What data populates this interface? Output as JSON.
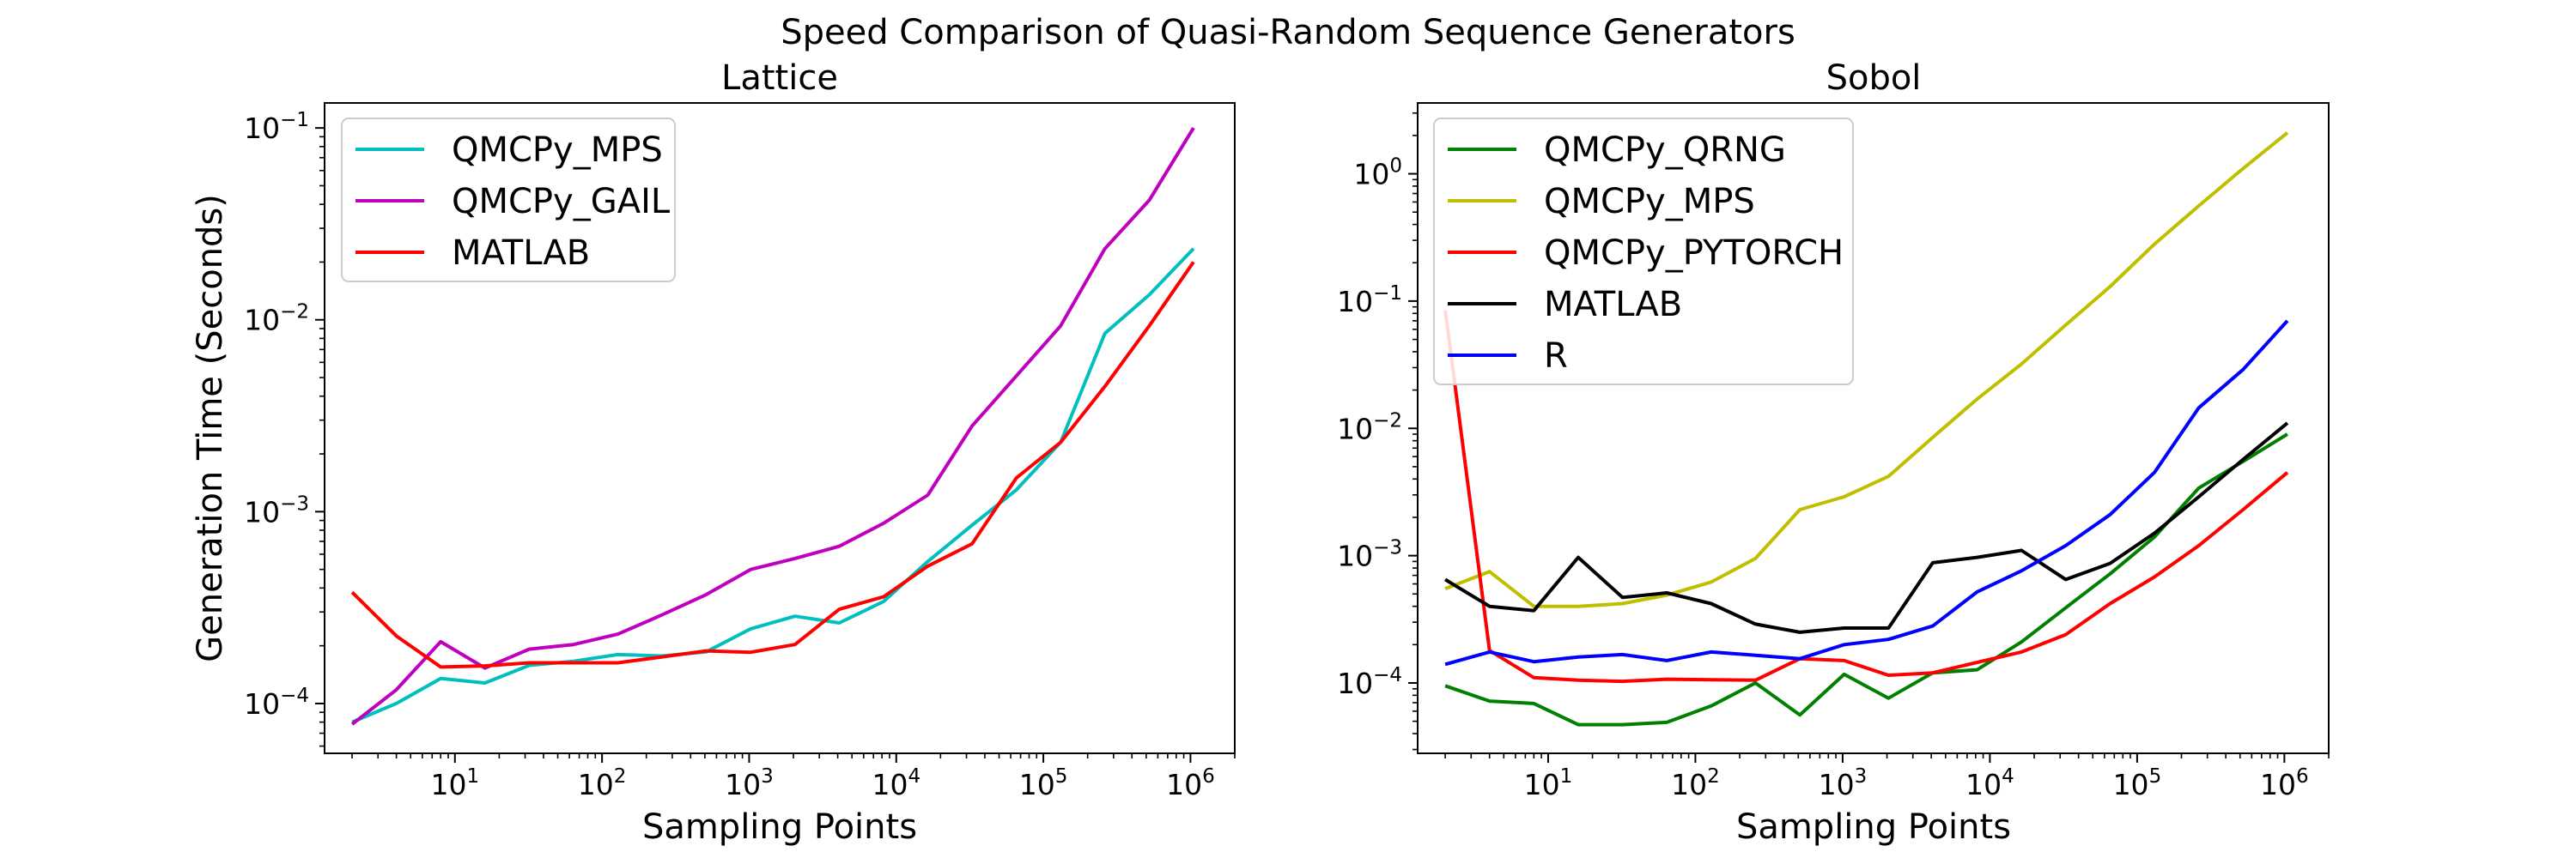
{
  "figure": {
    "suptitle": "Speed Comparison of Quasi-Random Sequence Generators",
    "ylabel": "Generation Time (Seconds)"
  },
  "chart_data": [
    {
      "type": "line",
      "title": "Lattice",
      "xlabel": "Sampling Points",
      "ylabel": "Generation Time (Seconds)",
      "xscale": "log",
      "yscale": "log",
      "xlim": [
        1.3,
        2000000
      ],
      "ylim": [
        5.5e-05,
        0.135
      ],
      "xticks": [
        {
          "value": 10,
          "base": "10",
          "exp": "1"
        },
        {
          "value": 100,
          "base": "10",
          "exp": "2"
        },
        {
          "value": 1000,
          "base": "10",
          "exp": "3"
        },
        {
          "value": 10000,
          "base": "10",
          "exp": "4"
        },
        {
          "value": 100000,
          "base": "10",
          "exp": "5"
        },
        {
          "value": 1000000,
          "base": "10",
          "exp": "6"
        }
      ],
      "yticks": [
        {
          "value": 0.0001,
          "base": "10",
          "exp": "−4"
        },
        {
          "value": 0.001,
          "base": "10",
          "exp": "−3"
        },
        {
          "value": 0.01,
          "base": "10",
          "exp": "−2"
        },
        {
          "value": 0.1,
          "base": "10",
          "exp": "−1"
        }
      ],
      "grid": false,
      "legend_position": "top-left",
      "x": [
        2,
        4,
        8,
        16,
        32,
        64,
        128,
        256,
        512,
        1024,
        2048,
        4096,
        8192,
        16384,
        32768,
        65536,
        131072,
        262144,
        524288,
        1048576
      ],
      "series": [
        {
          "name": "QMCPy_MPS",
          "color": "#00bfbf",
          "values": [
            8e-05,
            0.0001,
            0.000135,
            0.000128,
            0.000158,
            0.000166,
            0.00018,
            0.000177,
            0.000186,
            0.000245,
            0.000285,
            0.000263,
            0.00034,
            0.00055,
            0.00085,
            0.0013,
            0.0023,
            0.0085,
            0.0135,
            0.0235
          ]
        },
        {
          "name": "QMCPy_GAIL",
          "color": "#bf00bf",
          "values": [
            7.8e-05,
            0.000118,
            0.00021,
            0.000153,
            0.000192,
            0.000203,
            0.00023,
            0.00029,
            0.00037,
            0.0005,
            0.00057,
            0.00066,
            0.00087,
            0.00122,
            0.0028,
            0.0051,
            0.0093,
            0.0235,
            0.042,
            0.1
          ]
        },
        {
          "name": "MATLAB",
          "color": "#ff0000",
          "values": [
            0.00038,
            0.000225,
            0.000155,
            0.000157,
            0.000163,
            0.000163,
            0.000163,
            0.000175,
            0.000188,
            0.000185,
            0.000203,
            0.00031,
            0.00036,
            0.00052,
            0.00068,
            0.0015,
            0.0023,
            0.0045,
            0.0093,
            0.02
          ]
        }
      ]
    },
    {
      "type": "line",
      "title": "Sobol",
      "xlabel": "Sampling Points",
      "xscale": "log",
      "yscale": "log",
      "xlim": [
        1.3,
        2000000
      ],
      "ylim": [
        2.8e-05,
        3.6
      ],
      "xticks": [
        {
          "value": 10,
          "base": "10",
          "exp": "1"
        },
        {
          "value": 100,
          "base": "10",
          "exp": "2"
        },
        {
          "value": 1000,
          "base": "10",
          "exp": "3"
        },
        {
          "value": 10000,
          "base": "10",
          "exp": "4"
        },
        {
          "value": 100000,
          "base": "10",
          "exp": "5"
        },
        {
          "value": 1000000,
          "base": "10",
          "exp": "6"
        }
      ],
      "yticks": [
        {
          "value": 0.0001,
          "base": "10",
          "exp": "−4"
        },
        {
          "value": 0.001,
          "base": "10",
          "exp": "−3"
        },
        {
          "value": 0.01,
          "base": "10",
          "exp": "−2"
        },
        {
          "value": 0.1,
          "base": "10",
          "exp": "−1"
        },
        {
          "value": 1,
          "base": "10",
          "exp": "0"
        }
      ],
      "grid": false,
      "legend_position": "top-left",
      "x": [
        2,
        4,
        8,
        16,
        32,
        64,
        128,
        256,
        512,
        1024,
        2048,
        4096,
        8192,
        16384,
        32768,
        65536,
        131072,
        262144,
        524288,
        1048576
      ],
      "series": [
        {
          "name": "QMCPy_QRNG",
          "color": "#008000",
          "values": [
            9.5e-05,
            7.2e-05,
            6.9e-05,
            4.7e-05,
            4.7e-05,
            4.9e-05,
            6.6e-05,
            0.0001,
            5.6e-05,
            0.000117,
            7.6e-05,
            0.00012,
            0.000127,
            0.00021,
            0.00039,
            0.00072,
            0.0014,
            0.0034,
            0.0055,
            0.009
          ]
        },
        {
          "name": "QMCPy_MPS",
          "color": "#bfbf00",
          "values": [
            0.00055,
            0.00075,
            0.0004,
            0.0004,
            0.00042,
            0.00049,
            0.00062,
            0.00095,
            0.0023,
            0.0029,
            0.0042,
            0.0085,
            0.017,
            0.032,
            0.065,
            0.13,
            0.28,
            0.56,
            1.1,
            2.1
          ]
        },
        {
          "name": "QMCPy_PYTORCH",
          "color": "#ff0000",
          "values": [
            0.085,
            0.00018,
            0.00011,
            0.000105,
            0.000103,
            0.000107,
            0.000106,
            0.000105,
            0.000155,
            0.00015,
            0.000115,
            0.00012,
            0.000145,
            0.000175,
            0.00024,
            0.00042,
            0.00068,
            0.0012,
            0.0023,
            0.0045
          ]
        },
        {
          "name": "MATLAB",
          "color": "#000000",
          "values": [
            0.00065,
            0.0004,
            0.00037,
            0.00097,
            0.00047,
            0.00051,
            0.00042,
            0.00029,
            0.00025,
            0.00027,
            0.00027,
            0.00088,
            0.00097,
            0.0011,
            0.00065,
            0.00087,
            0.0015,
            0.0029,
            0.0057,
            0.011
          ]
        },
        {
          "name": "R",
          "color": "#0000ff",
          "values": [
            0.00014,
            0.000175,
            0.000147,
            0.00016,
            0.000167,
            0.00015,
            0.000175,
            0.000165,
            0.000155,
            0.0002,
            0.00022,
            0.00028,
            0.00052,
            0.00076,
            0.0012,
            0.0021,
            0.0045,
            0.0145,
            0.029,
            0.07
          ]
        }
      ]
    }
  ]
}
